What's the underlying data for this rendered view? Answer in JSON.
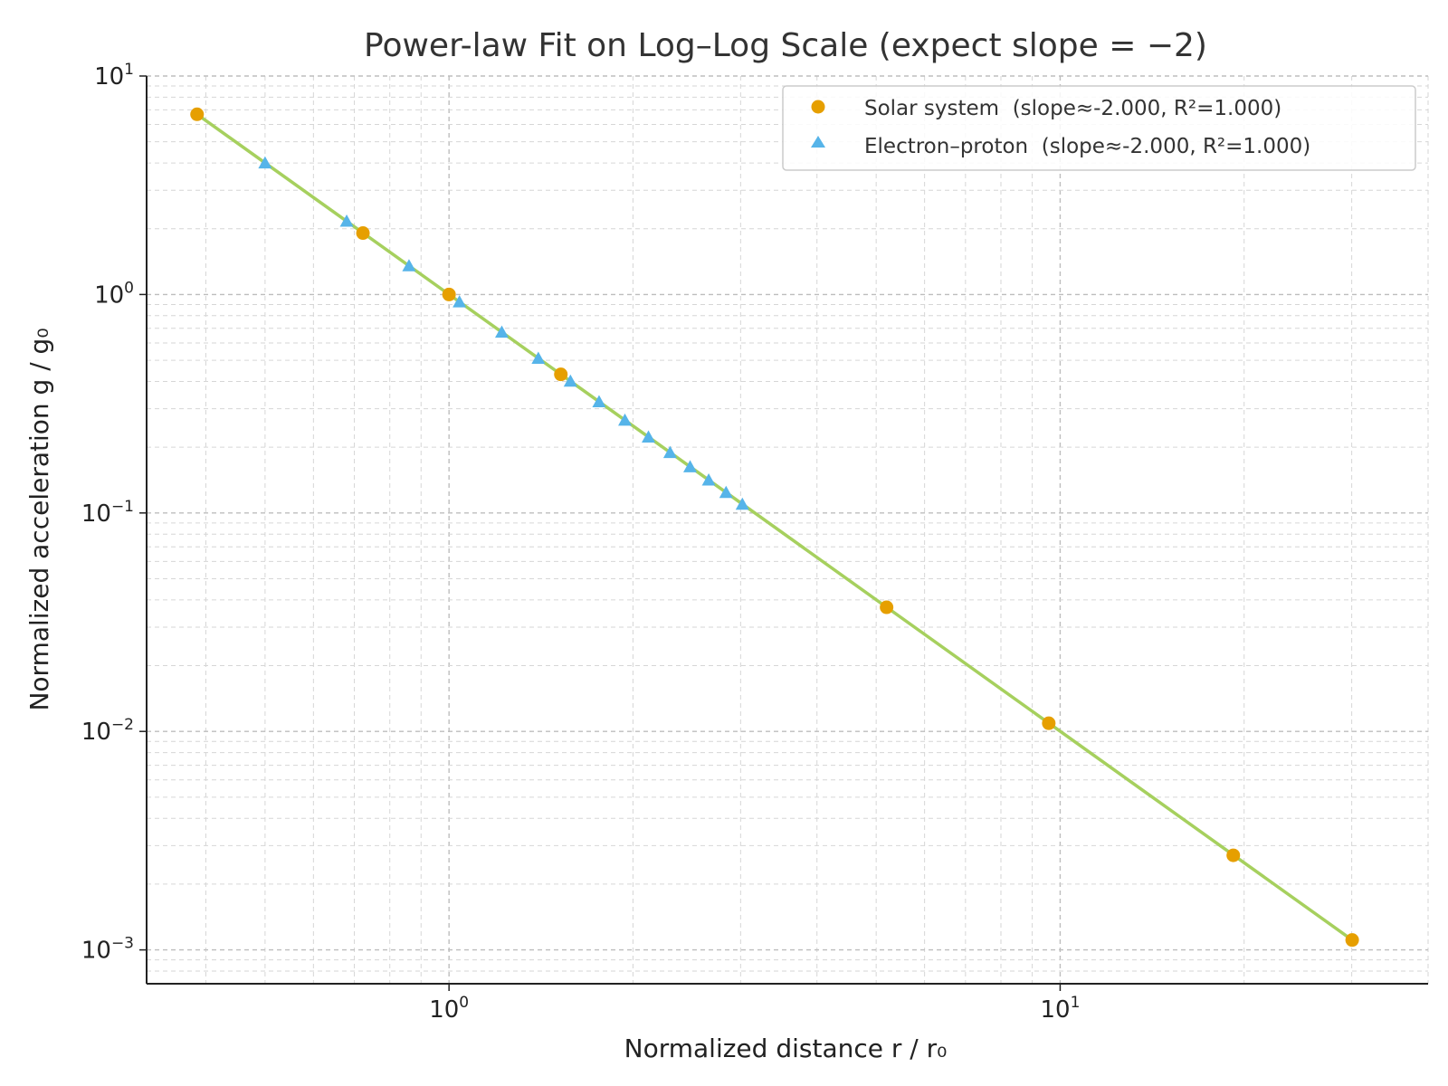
{
  "chart_data": {
    "type": "scatter",
    "title": "Power-law Fit on Log–Log Scale (expect slope = −2)",
    "xlabel": "Normalized distance  r / r₀",
    "ylabel": "Normalized acceleration  g / g₀",
    "xscale": "log",
    "yscale": "log",
    "xlim": [
      0.32,
      40
    ],
    "ylim": [
      0.0007,
      10
    ],
    "grid": "major and minor, dashed",
    "legend_position": "top-right",
    "x_tick_labels": [
      {
        "value": 1,
        "base": "10",
        "exp": "0"
      },
      {
        "value": 10,
        "base": "10",
        "exp": "1"
      }
    ],
    "y_tick_labels": [
      {
        "value": 10,
        "base": "10",
        "exp": "1"
      },
      {
        "value": 1,
        "base": "10",
        "exp": "0"
      },
      {
        "value": 0.1,
        "base": "10",
        "exp": "−1"
      },
      {
        "value": 0.01,
        "base": "10",
        "exp": "−2"
      },
      {
        "value": 0.001,
        "base": "10",
        "exp": "−3"
      }
    ],
    "series": [
      {
        "name": "Solar system  (slope≈-2.000, R²=1.000)",
        "marker": "circle",
        "color": "#E69F00",
        "x": [
          0.387,
          0.723,
          1.0,
          1.524,
          5.2,
          9.58,
          19.2,
          30.05
        ],
        "y": [
          6.68,
          1.91,
          1.0,
          0.431,
          0.037,
          0.0109,
          0.00271,
          0.00111
        ]
      },
      {
        "name": "Electron–proton  (slope≈-2.000, R²=1.000)",
        "marker": "triangle",
        "color": "#56B4E9",
        "x": [
          0.5,
          0.68,
          0.86,
          1.04,
          1.22,
          1.4,
          1.58,
          1.76,
          1.94,
          2.12,
          2.3,
          2.48,
          2.66,
          2.84,
          3.02
        ],
        "y": [
          4.0,
          2.163,
          1.352,
          0.9246,
          0.6718,
          0.5102,
          0.4006,
          0.3228,
          0.2657,
          0.2225,
          0.189,
          0.1626,
          0.1413,
          0.124,
          0.1096
        ]
      }
    ],
    "fit_line": {
      "color": "#A6D05E",
      "x": [
        0.387,
        30.05
      ],
      "y": [
        6.68,
        0.00111
      ]
    }
  }
}
